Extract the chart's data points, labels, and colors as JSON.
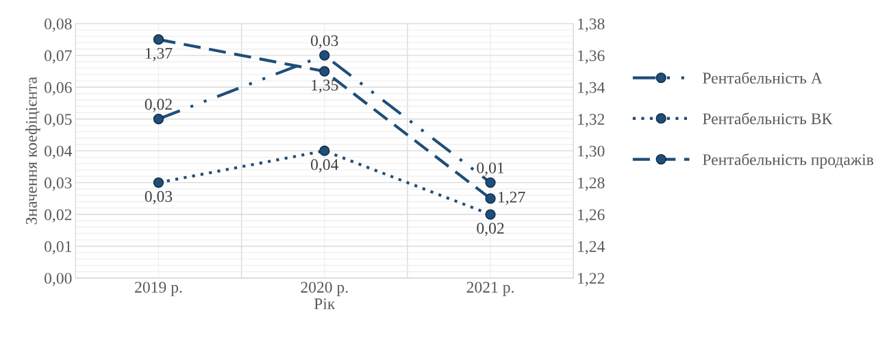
{
  "chart_data": {
    "type": "line",
    "xlabel": "Рік",
    "ylabel": "Значення коефіцієнта",
    "categories": [
      "2019 р.",
      "2020 р.",
      "2021 р."
    ],
    "ylim": [
      0,
      0.08
    ],
    "yticks": [
      {
        "value": 0,
        "label": "0,00"
      },
      {
        "value": 0.01,
        "label": "0,01"
      },
      {
        "value": 0.02,
        "label": "0,02"
      },
      {
        "value": 0.03,
        "label": "0,03"
      },
      {
        "value": 0.04,
        "label": "0,04"
      },
      {
        "value": 0.05,
        "label": "0,05"
      },
      {
        "value": 0.06,
        "label": "0,06"
      },
      {
        "value": 0.07,
        "label": "0,07"
      },
      {
        "value": 0.08,
        "label": "0,08"
      }
    ],
    "y2lim": [
      1.22,
      1.38
    ],
    "y2ticks": [
      {
        "value": 1.22,
        "label": "1,22"
      },
      {
        "value": 1.24,
        "label": "1,24"
      },
      {
        "value": 1.26,
        "label": "1,26"
      },
      {
        "value": 1.28,
        "label": "1,28"
      },
      {
        "value": 1.3,
        "label": "1,30"
      },
      {
        "value": 1.32,
        "label": "1,32"
      },
      {
        "value": 1.34,
        "label": "1,34"
      },
      {
        "value": 1.36,
        "label": "1,36"
      },
      {
        "value": 1.38,
        "label": "1,38"
      }
    ],
    "grid": true,
    "legend": "right",
    "marker": "circle",
    "annotations": [
      "0,02",
      "0,03",
      "0,01"
    ],
    "series": [
      {
        "name": "Рентабельність А",
        "color": "#1f4e79",
        "line_style": "dashdot",
        "values": [
          0.05,
          0.07,
          0.03
        ]
      },
      {
        "name": "Рентабельність ВК",
        "color": "#1f4e79",
        "line_style": "dotted",
        "values": [
          0.03,
          0.04,
          0.02
        ],
        "value_labels": [
          "0,03",
          "0,04",
          "0,02"
        ]
      },
      {
        "name": "Рентабельність продажів",
        "color": "#1f4e79",
        "line_style": "dashed",
        "axis": "y2",
        "values": [
          1.37,
          1.35,
          1.27
        ],
        "value_labels": [
          "1,37",
          "1,35",
          "1,27"
        ]
      }
    ]
  }
}
